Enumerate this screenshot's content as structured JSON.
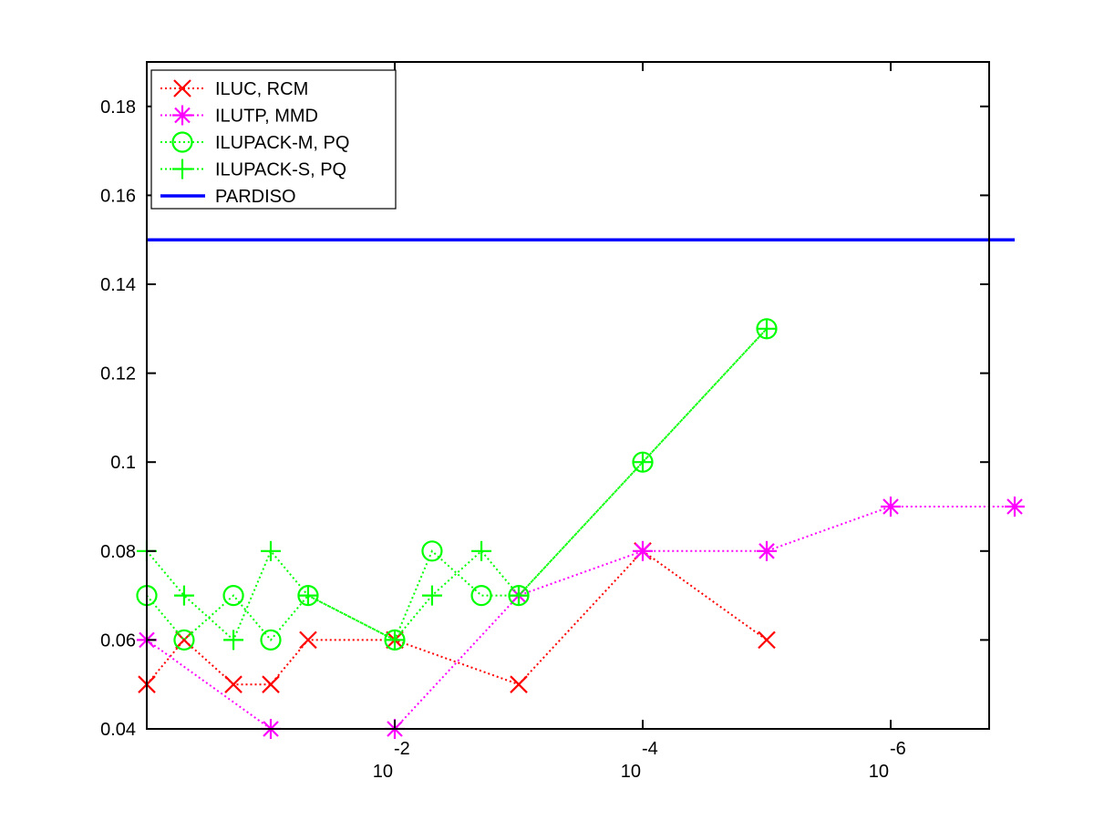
{
  "chart_data": {
    "type": "line",
    "title": "",
    "xlabel": "",
    "ylabel": "",
    "xscale": "log",
    "x_direction": "decreasing",
    "x_ticks": [
      {
        "x": 0.01,
        "base": "10",
        "exp": "-2"
      },
      {
        "x": 0.0001,
        "base": "10",
        "exp": "-4"
      },
      {
        "x": 1e-06,
        "base": "10",
        "exp": "-6"
      }
    ],
    "y_ticks": [
      "0.04",
      "0.06",
      "0.08",
      "0.1",
      "0.12",
      "0.14",
      "0.16",
      "0.18"
    ],
    "ylim": [
      0.04,
      0.19
    ],
    "grid": false,
    "legend_position": "top-left",
    "series": [
      {
        "name": "ILUC, RCM",
        "color": "#ff0000",
        "marker": "x",
        "line": "dotted",
        "x": [
          1,
          0.5,
          0.2,
          0.1,
          0.05,
          0.01,
          0.001,
          0.0001,
          1e-05
        ],
        "y": [
          0.05,
          0.06,
          0.05,
          0.05,
          0.06,
          0.06,
          0.05,
          0.08,
          0.06
        ]
      },
      {
        "name": "ILUTP, MMD",
        "color": "#ff00ff",
        "marker": "asterisk",
        "line": "dotted",
        "x": [
          1,
          0.1,
          0.01,
          0.001,
          0.0001,
          1e-05,
          1e-06,
          1e-07
        ],
        "y": [
          0.06,
          0.04,
          0.04,
          0.07,
          0.08,
          0.08,
          0.09,
          0.09
        ]
      },
      {
        "name": "ILUPACK-M, PQ",
        "color": "#00ff00",
        "marker": "circle",
        "line": "dotted",
        "x": [
          1,
          0.5,
          0.2,
          0.1,
          0.05,
          0.01,
          0.005,
          0.002,
          0.001,
          0.0001,
          1e-05
        ],
        "y": [
          0.07,
          0.06,
          0.07,
          0.06,
          0.07,
          0.06,
          0.08,
          0.07,
          0.07,
          0.1,
          0.13
        ]
      },
      {
        "name": "ILUPACK-S, PQ",
        "color": "#00ff00",
        "marker": "plus",
        "line": "dotted",
        "x": [
          1,
          0.5,
          0.2,
          0.1,
          0.05,
          0.01,
          0.005,
          0.002,
          0.001,
          0.0001,
          1e-05
        ],
        "y": [
          0.08,
          0.07,
          0.06,
          0.08,
          0.07,
          0.06,
          0.07,
          0.08,
          0.07,
          0.1,
          0.13
        ]
      },
      {
        "name": "PARDISO",
        "color": "#0000ff",
        "marker": "none",
        "line": "solid",
        "x": [
          1,
          1e-07
        ],
        "y": [
          0.15,
          0.15
        ]
      }
    ]
  }
}
